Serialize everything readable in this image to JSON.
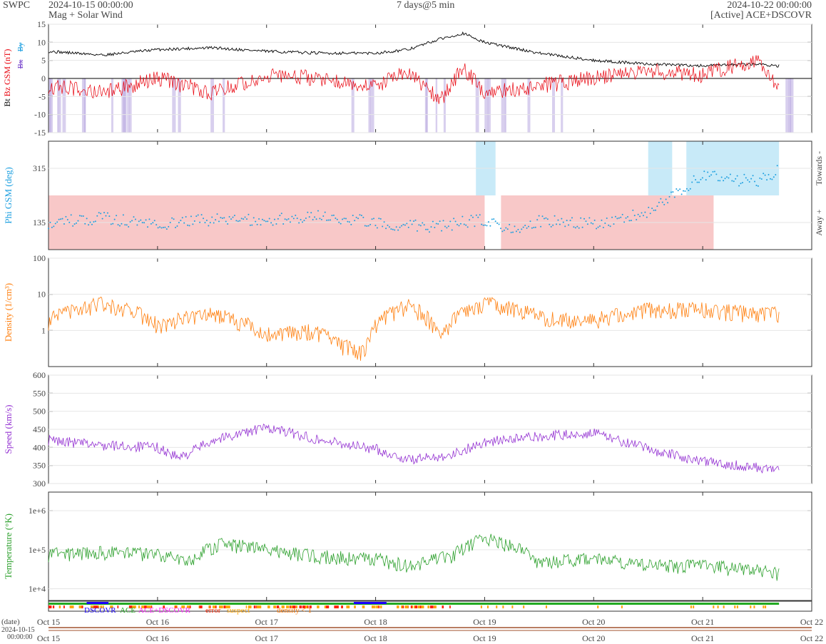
{
  "header": {
    "org": "SWPC",
    "start_time": "2024-10-15 00:00:00",
    "product": "Mag + Solar Wind",
    "span": "7 days@5 min",
    "end_time": "2024-10-22 00:00:00",
    "source": "[Active] ACE+DSCOVR"
  },
  "chart_data": [
    {
      "type": "line",
      "panel": "mag",
      "ylabel_parts": [
        "Bt",
        "Bz GSM (nT)",
        "Bx",
        "By"
      ],
      "yticks": [
        15,
        10,
        5,
        0,
        -5,
        -10,
        -15
      ],
      "ylim": [
        -15,
        15
      ],
      "zero_line": true,
      "x_days": [
        0,
        0.5,
        1,
        1.5,
        2,
        2.5,
        3,
        3.3,
        3.6,
        3.8,
        4,
        4.5,
        5,
        5.5,
        6,
        6.5,
        6.7
      ],
      "series": [
        {
          "name": "Bt",
          "color": "#000000",
          "values": [
            7.5,
            6.5,
            8,
            8.5,
            7.5,
            7,
            7,
            8,
            11,
            12.5,
            10,
            7,
            5,
            4,
            3.5,
            4,
            3.5
          ]
        },
        {
          "name": "Bz GSM (nT)",
          "color": "#e8000b",
          "values": [
            -2,
            -4,
            0,
            -4,
            1,
            0,
            -2,
            2,
            -6,
            3,
            -4,
            -2,
            0,
            2,
            1,
            5,
            -2
          ]
        }
      ],
      "shading": {
        "color": "#b8a8e0",
        "meaning": "Bz south"
      }
    },
    {
      "type": "scatter",
      "panel": "phi",
      "ylabel": "Phi GSM (deg)",
      "right_labels": [
        "Towards -",
        "Away +"
      ],
      "yticks": [
        315,
        135
      ],
      "ylim": [
        45,
        405
      ],
      "x_days": [
        0,
        0.5,
        1,
        1.5,
        2,
        2.5,
        3,
        3.5,
        4,
        4.2,
        4.5,
        5,
        5.5,
        6,
        6.5,
        6.7
      ],
      "values": [
        135,
        150,
        130,
        145,
        140,
        160,
        135,
        120,
        145,
        110,
        140,
        130,
        170,
        290,
        270,
        310
      ],
      "color": "#1ea0e0",
      "sectors": [
        {
          "label": "Away +",
          "color": "#f8c8c8"
        },
        {
          "label": "Towards -",
          "color": "#c8eaf8"
        }
      ]
    },
    {
      "type": "line",
      "panel": "density",
      "ylabel": "Density (1/cm³)",
      "scale": "log",
      "yticks": [
        "100",
        "10",
        "1"
      ],
      "ylim": [
        0.1,
        100
      ],
      "x_days": [
        0,
        0.3,
        0.5,
        1,
        1.5,
        2,
        2.4,
        2.7,
        2.9,
        3.3,
        3.6,
        4,
        4.5,
        5,
        5.5,
        6,
        6.5,
        6.7
      ],
      "values": [
        2,
        4,
        6,
        1.5,
        3,
        0.8,
        1,
        0.4,
        0.25,
        5,
        0.5,
        6,
        2.5,
        2,
        4,
        4,
        3,
        3
      ],
      "color": "#ff7f0e"
    },
    {
      "type": "line",
      "panel": "speed",
      "ylabel": "Speed (km/s)",
      "yticks": [
        600,
        550,
        500,
        450,
        400,
        350,
        300
      ],
      "ylim": [
        300,
        600
      ],
      "x_days": [
        0,
        0.5,
        1,
        1.2,
        1.5,
        2,
        2.5,
        3,
        3.3,
        3.7,
        4,
        4.5,
        5,
        5.5,
        6,
        6.5,
        6.7
      ],
      "values": [
        420,
        405,
        400,
        370,
        420,
        455,
        420,
        395,
        365,
        380,
        415,
        430,
        440,
        395,
        360,
        345,
        335
      ],
      "color": "#9432d2"
    },
    {
      "type": "line",
      "panel": "temperature",
      "ylabel": "Temperature (°K)",
      "scale": "log",
      "yticks": [
        "1e+6",
        "1e+5",
        "1e+4"
      ],
      "ylim": [
        5000,
        3000000
      ],
      "x_days": [
        0,
        0.5,
        1,
        1.3,
        1.6,
        2,
        2.5,
        3,
        3.3,
        3.7,
        4,
        4.5,
        5,
        5.5,
        6,
        6.5,
        6.7
      ],
      "values": [
        80000,
        90000,
        80000,
        50000,
        150000,
        100000,
        70000,
        60000,
        40000,
        70000,
        200000,
        50000,
        60000,
        40000,
        40000,
        30000,
        25000
      ],
      "color": "#2ca02c"
    },
    {
      "type": "bar",
      "panel": "source",
      "legend": [
        {
          "label": "DSCOVR",
          "color": "#1a00ff"
        },
        {
          "label": "ACE",
          "color": "#22aa22"
        },
        {
          "label": "ACE+DSCOVR",
          "color": "#ff22ff"
        },
        {
          "label": "error",
          "color": "#ff2200"
        },
        {
          "label": "suspect",
          "color": "#ffa500"
        },
        {
          "label": "density < 1",
          "color": "#ff7700"
        }
      ]
    }
  ],
  "x_axis": {
    "ticks": [
      "Oct 15",
      "Oct 16",
      "Oct 17",
      "Oct 18",
      "Oct 19",
      "Oct 20",
      "Oct 21",
      "Oct 22"
    ],
    "date_label": "(date)",
    "start_date": "2024-10-15",
    "start_clock": "00:00:00"
  }
}
